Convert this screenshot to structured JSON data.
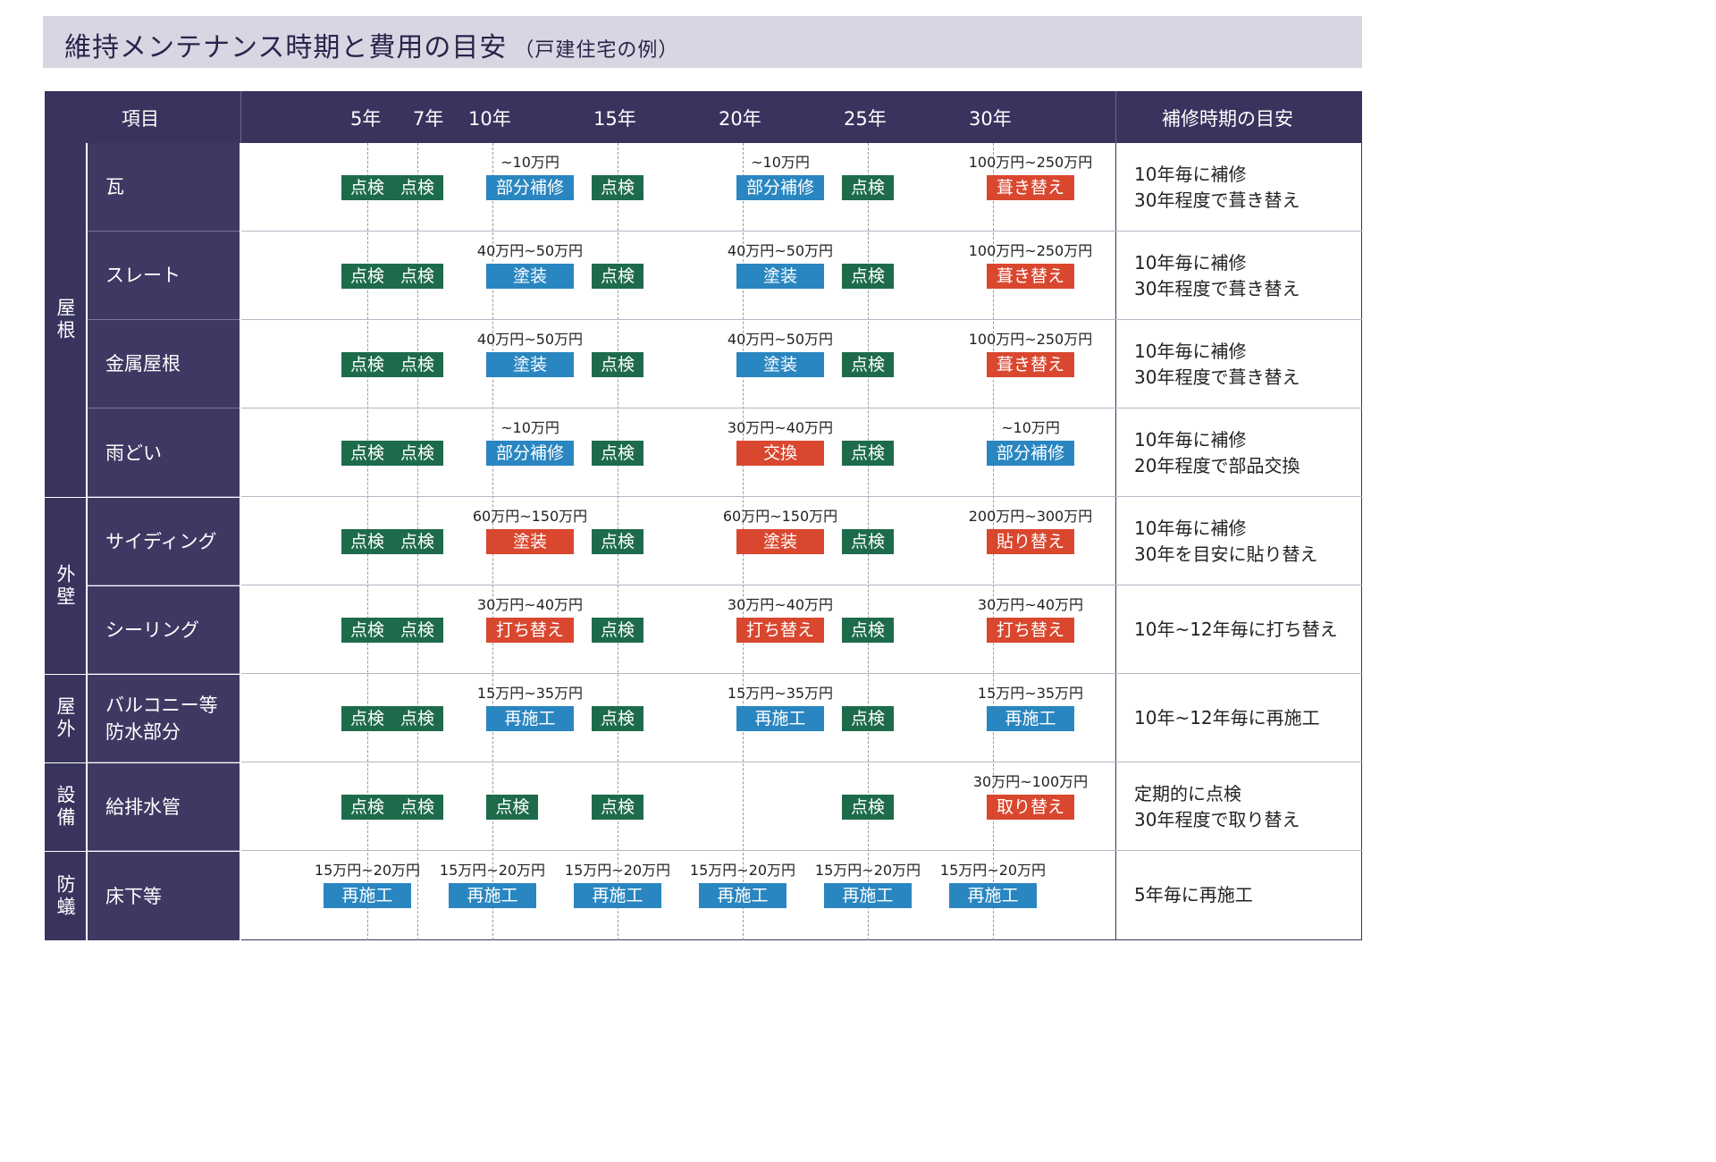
{
  "title": {
    "main": "維持メンテナンス時期と費用の目安",
    "sub": "（戸建住宅の例）"
  },
  "header": {
    "item": "項目",
    "years": [
      "5年",
      "7年",
      "10年",
      "15年",
      "20年",
      "25年",
      "30年"
    ],
    "guide": "補修時期の目安"
  },
  "categories": [
    {
      "label": "屋根"
    },
    {
      "label": "外壁"
    },
    {
      "label": "屋外"
    },
    {
      "label": "設備"
    },
    {
      "label": "防蟻"
    }
  ],
  "colors": {
    "inspection": "#1e6b4c",
    "repair": "#2a86c0",
    "replace": "#d9472f",
    "header": "#38345e"
  },
  "rows": [
    {
      "item": "瓦",
      "note": [
        "10年毎に補修",
        "30年程度で葺き替え"
      ],
      "badges": [
        {
          "label": "点検",
          "type": "inspection",
          "year": 5
        },
        {
          "label": "点検",
          "type": "inspection",
          "year": 7
        },
        {
          "label": "部分補修",
          "type": "repair",
          "year": 11.5,
          "cost": "~10万円"
        },
        {
          "label": "点検",
          "type": "inspection",
          "year": 15
        },
        {
          "label": "部分補修",
          "type": "repair",
          "year": 21.5,
          "cost": "~10万円"
        },
        {
          "label": "点検",
          "type": "inspection",
          "year": 25
        },
        {
          "label": "葺き替え",
          "type": "replace",
          "year": 31.5,
          "cost": "100万円~250万円"
        }
      ]
    },
    {
      "item": "スレート",
      "note": [
        "10年毎に補修",
        "30年程度で葺き替え"
      ],
      "badges": [
        {
          "label": "点検",
          "type": "inspection",
          "year": 5
        },
        {
          "label": "点検",
          "type": "inspection",
          "year": 7
        },
        {
          "label": "塗装",
          "type": "repair",
          "year": 11.5,
          "cost": "40万円~50万円"
        },
        {
          "label": "点検",
          "type": "inspection",
          "year": 15
        },
        {
          "label": "塗装",
          "type": "repair",
          "year": 21.5,
          "cost": "40万円~50万円"
        },
        {
          "label": "点検",
          "type": "inspection",
          "year": 25
        },
        {
          "label": "葺き替え",
          "type": "replace",
          "year": 31.5,
          "cost": "100万円~250万円"
        }
      ]
    },
    {
      "item": "金属屋根",
      "note": [
        "10年毎に補修",
        "30年程度で葺き替え"
      ],
      "badges": [
        {
          "label": "点検",
          "type": "inspection",
          "year": 5
        },
        {
          "label": "点検",
          "type": "inspection",
          "year": 7
        },
        {
          "label": "塗装",
          "type": "repair",
          "year": 11.5,
          "cost": "40万円~50万円"
        },
        {
          "label": "点検",
          "type": "inspection",
          "year": 15
        },
        {
          "label": "塗装",
          "type": "repair",
          "year": 21.5,
          "cost": "40万円~50万円"
        },
        {
          "label": "点検",
          "type": "inspection",
          "year": 25
        },
        {
          "label": "葺き替え",
          "type": "replace",
          "year": 31.5,
          "cost": "100万円~250万円"
        }
      ]
    },
    {
      "item": "雨どい",
      "note": [
        "10年毎に補修",
        "20年程度で部品交換"
      ],
      "badges": [
        {
          "label": "点検",
          "type": "inspection",
          "year": 5
        },
        {
          "label": "点検",
          "type": "inspection",
          "year": 7
        },
        {
          "label": "部分補修",
          "type": "repair",
          "year": 11.5,
          "cost": "~10万円"
        },
        {
          "label": "点検",
          "type": "inspection",
          "year": 15
        },
        {
          "label": "交換",
          "type": "replace",
          "year": 21.5,
          "cost": "30万円~40万円"
        },
        {
          "label": "点検",
          "type": "inspection",
          "year": 25
        },
        {
          "label": "部分補修",
          "type": "repair",
          "year": 31.5,
          "cost": "~10万円"
        }
      ]
    },
    {
      "item": "サイディング",
      "note": [
        "10年毎に補修",
        "30年を目安に貼り替え"
      ],
      "badges": [
        {
          "label": "点検",
          "type": "inspection",
          "year": 5
        },
        {
          "label": "点検",
          "type": "inspection",
          "year": 7
        },
        {
          "label": "塗装",
          "type": "replace",
          "year": 11.5,
          "cost": "60万円~150万円"
        },
        {
          "label": "点検",
          "type": "inspection",
          "year": 15
        },
        {
          "label": "塗装",
          "type": "replace",
          "year": 21.5,
          "cost": "60万円~150万円"
        },
        {
          "label": "点検",
          "type": "inspection",
          "year": 25
        },
        {
          "label": "貼り替え",
          "type": "replace",
          "year": 31.5,
          "cost": "200万円~300万円"
        }
      ]
    },
    {
      "item": "シーリング",
      "note": [
        "10年~12年毎に打ち替え"
      ],
      "badges": [
        {
          "label": "点検",
          "type": "inspection",
          "year": 5
        },
        {
          "label": "点検",
          "type": "inspection",
          "year": 7
        },
        {
          "label": "打ち替え",
          "type": "replace",
          "year": 11.5,
          "cost": "30万円~40万円"
        },
        {
          "label": "点検",
          "type": "inspection",
          "year": 15
        },
        {
          "label": "打ち替え",
          "type": "replace",
          "year": 21.5,
          "cost": "30万円~40万円"
        },
        {
          "label": "点検",
          "type": "inspection",
          "year": 25
        },
        {
          "label": "打ち替え",
          "type": "replace",
          "year": 31.5,
          "cost": "30万円~40万円"
        }
      ]
    },
    {
      "item": [
        "バルコニー等",
        "防水部分"
      ],
      "note": [
        "10年~12年毎に再施工"
      ],
      "badges": [
        {
          "label": "点検",
          "type": "inspection",
          "year": 5
        },
        {
          "label": "点検",
          "type": "inspection",
          "year": 7
        },
        {
          "label": "再施工",
          "type": "repair",
          "year": 11.5,
          "cost": "15万円~35万円"
        },
        {
          "label": "点検",
          "type": "inspection",
          "year": 15
        },
        {
          "label": "再施工",
          "type": "repair",
          "year": 21.5,
          "cost": "15万円~35万円"
        },
        {
          "label": "点検",
          "type": "inspection",
          "year": 25
        },
        {
          "label": "再施工",
          "type": "repair",
          "year": 31.5,
          "cost": "15万円~35万円"
        }
      ]
    },
    {
      "item": "給排水管",
      "note": [
        "定期的に点検",
        "30年程度で取り替え"
      ],
      "badges": [
        {
          "label": "点検",
          "type": "inspection",
          "year": 5
        },
        {
          "label": "点検",
          "type": "inspection",
          "year": 7
        },
        {
          "label": "点検",
          "type": "inspection",
          "year": 10.8
        },
        {
          "label": "点検",
          "type": "inspection",
          "year": 15
        },
        {
          "label": "点検",
          "type": "inspection",
          "year": 25
        },
        {
          "label": "取り替え",
          "type": "replace",
          "year": 31.5,
          "cost": "30万円~100万円"
        }
      ]
    },
    {
      "item": "床下等",
      "note": [
        "5年毎に再施工"
      ],
      "badges": [
        {
          "label": "再施工",
          "type": "repair",
          "year": 5,
          "cost": "15万円~20万円",
          "wide": true
        },
        {
          "label": "再施工",
          "type": "repair",
          "year": 10,
          "cost": "15万円~20万円",
          "wide": true
        },
        {
          "label": "再施工",
          "type": "repair",
          "year": 15,
          "cost": "15万円~20万円",
          "wide": true
        },
        {
          "label": "再施工",
          "type": "repair",
          "year": 20,
          "cost": "15万円~20万円",
          "wide": true
        },
        {
          "label": "再施工",
          "type": "repair",
          "year": 25,
          "cost": "15万円~20万円",
          "wide": true
        },
        {
          "label": "再施工",
          "type": "repair",
          "year": 30,
          "cost": "15万円~20万円",
          "wide": true
        }
      ]
    }
  ]
}
